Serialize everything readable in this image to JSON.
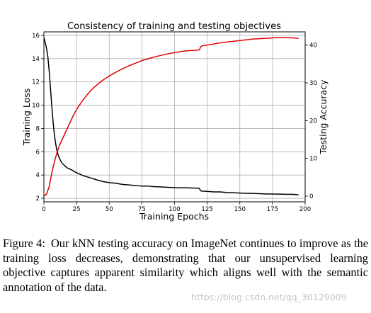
{
  "chart_data": {
    "type": "line",
    "title": "Consistency of training and testing objectives",
    "xlabel": "Training Epochs",
    "ylabel_left": "Training Loss",
    "ylabel_right": "Testing Accuracy",
    "xlim": [
      0,
      200
    ],
    "ylim_left": [
      1.7,
      16.3
    ],
    "ylim_right": [
      -1.5,
      43.5
    ],
    "xticks": [
      "0",
      "25",
      "50",
      "75",
      "100",
      "125",
      "150",
      "175",
      "200"
    ],
    "yticks_left": [
      "2",
      "4",
      "6",
      "8",
      "10",
      "12",
      "14",
      "16"
    ],
    "yticks_right": [
      "0",
      "10",
      "20",
      "30",
      "40"
    ],
    "grid": true,
    "series": [
      {
        "axis": "left",
        "color": "#000000",
        "x": [
          0,
          1,
          2,
          3,
          4,
          5,
          6,
          7,
          8,
          9,
          10,
          11,
          12,
          13,
          14,
          16,
          18,
          20,
          22,
          24,
          26,
          28,
          30,
          33,
          36,
          40,
          45,
          50,
          55,
          60,
          65,
          70,
          75,
          80,
          85,
          90,
          95,
          100,
          105,
          110,
          115,
          118,
          119,
          120,
          121,
          125,
          130,
          135,
          140,
          145,
          150,
          155,
          160,
          165,
          170,
          175,
          180,
          185,
          190,
          195
        ],
        "y": [
          15.8,
          15.4,
          14.9,
          14.2,
          13.0,
          11.5,
          10.0,
          8.6,
          7.5,
          6.7,
          6.1,
          5.7,
          5.4,
          5.2,
          5.0,
          4.8,
          4.6,
          4.5,
          4.4,
          4.25,
          4.15,
          4.05,
          3.95,
          3.85,
          3.75,
          3.6,
          3.45,
          3.35,
          3.3,
          3.2,
          3.15,
          3.1,
          3.05,
          3.05,
          3.0,
          2.98,
          2.95,
          2.92,
          2.9,
          2.9,
          2.88,
          2.88,
          2.85,
          2.65,
          2.62,
          2.6,
          2.55,
          2.55,
          2.5,
          2.48,
          2.45,
          2.43,
          2.42,
          2.4,
          2.38,
          2.37,
          2.36,
          2.35,
          2.35,
          2.3
        ]
      },
      {
        "axis": "right",
        "color": "#e00000",
        "x": [
          0,
          2,
          4,
          6,
          8,
          10,
          12,
          14,
          16,
          18,
          20,
          22,
          24,
          26,
          28,
          30,
          33,
          36,
          40,
          45,
          50,
          55,
          60,
          65,
          70,
          75,
          80,
          85,
          90,
          95,
          100,
          105,
          110,
          115,
          118,
          119,
          120,
          121,
          125,
          130,
          135,
          140,
          145,
          150,
          155,
          160,
          165,
          170,
          175,
          180,
          185,
          190,
          195
        ],
        "y": [
          0.1,
          0.5,
          2.5,
          6.0,
          9.0,
          11.5,
          13.5,
          15.0,
          16.5,
          18.0,
          19.5,
          21.0,
          22.3,
          23.5,
          24.5,
          25.5,
          26.8,
          28.0,
          29.3,
          30.7,
          31.8,
          32.8,
          33.7,
          34.5,
          35.2,
          35.9,
          36.4,
          36.9,
          37.3,
          37.7,
          38.0,
          38.3,
          38.5,
          38.6,
          38.7,
          38.7,
          39.5,
          39.8,
          40.0,
          40.3,
          40.6,
          40.8,
          41.0,
          41.2,
          41.4,
          41.6,
          41.7,
          41.8,
          41.9,
          42.0,
          42.0,
          41.9,
          41.8
        ]
      }
    ]
  },
  "caption": {
    "label": "Figure 4:",
    "text": "Our kNN testing accuracy on ImageNet continues to improve as the training loss decreases, demonstrating that our unsupervised learning objective captures apparent similarity which aligns well with the semantic annotation of the data."
  },
  "watermark": "https://blog.csdn.net/qq_30129009"
}
